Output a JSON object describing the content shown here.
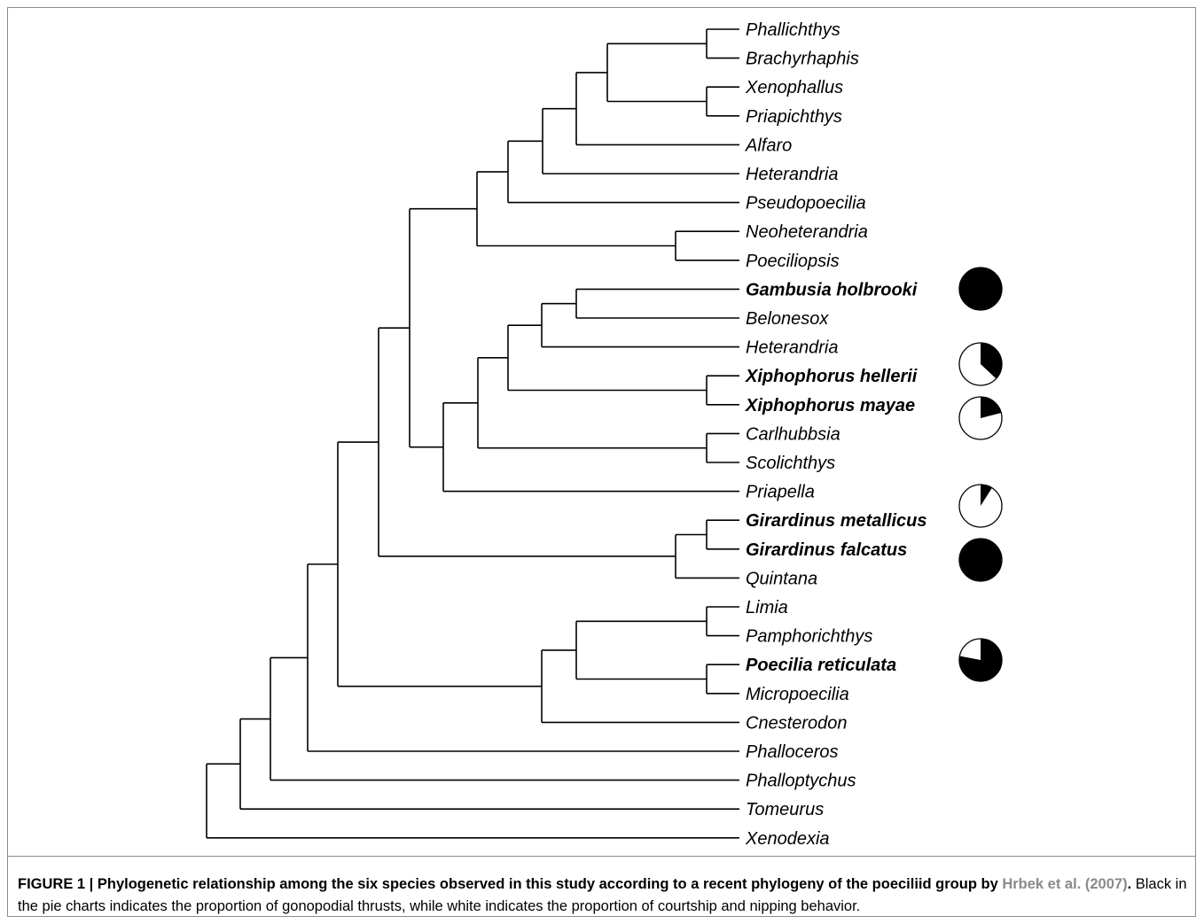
{
  "taxa": [
    {
      "label": "Phallichthys",
      "bold": false
    },
    {
      "label": "Brachyrhaphis",
      "bold": false
    },
    {
      "label": "Xenophallus",
      "bold": false
    },
    {
      "label": "Priapichthys",
      "bold": false
    },
    {
      "label": "Alfaro",
      "bold": false
    },
    {
      "label": "Heterandria",
      "bold": false
    },
    {
      "label": "Pseudopoecilia",
      "bold": false
    },
    {
      "label": "Neoheterandria",
      "bold": false
    },
    {
      "label": "Poeciliopsis",
      "bold": false
    },
    {
      "label": "Gambusia holbrooki",
      "bold": true
    },
    {
      "label": "Belonesox",
      "bold": false
    },
    {
      "label": "Heterandria",
      "bold": false
    },
    {
      "label": "Xiphophorus hellerii",
      "bold": true
    },
    {
      "label": "Xiphophorus mayae",
      "bold": true
    },
    {
      "label": "Carlhubbsia",
      "bold": false
    },
    {
      "label": "Scolichthys",
      "bold": false
    },
    {
      "label": "Priapella",
      "bold": false
    },
    {
      "label": "Girardinus metallicus",
      "bold": true
    },
    {
      "label": "Girardinus falcatus",
      "bold": true
    },
    {
      "label": "Quintana",
      "bold": false
    },
    {
      "label": "Limia",
      "bold": false
    },
    {
      "label": "Pamphorichthys",
      "bold": false
    },
    {
      "label": "Poecilia reticulata",
      "bold": true
    },
    {
      "label": "Micropoecilia",
      "bold": false
    },
    {
      "label": "Cnesterodon",
      "bold": false
    },
    {
      "label": "Phalloceros",
      "bold": false
    },
    {
      "label": "Phalloptychus",
      "bold": false
    },
    {
      "label": "Tomeurus",
      "bold": false
    },
    {
      "label": "Xenodexia",
      "bold": false
    }
  ],
  "pie_charts": [
    {
      "species": "Gambusia holbrooki",
      "gonopodial_thrust_fraction": 1.0
    },
    {
      "species": "Xiphophorus hellerii",
      "gonopodial_thrust_fraction": 0.37
    },
    {
      "species": "Xiphophorus mayae",
      "gonopodial_thrust_fraction": 0.21
    },
    {
      "species": "Girardinus metallicus",
      "gonopodial_thrust_fraction": 0.09
    },
    {
      "species": "Girardinus falcatus",
      "gonopodial_thrust_fraction": 1.0
    },
    {
      "species": "Poecilia reticulata",
      "gonopodial_thrust_fraction": 0.78
    }
  ],
  "pie_colors": {
    "thrust": "#000000",
    "courtship_nipping": "#ffffff"
  },
  "caption": {
    "label_bold": "FIGURE 1 | Phylogenetic relationship among the six species observed in this study according to a recent phylogeny of the poeciliid group by ",
    "reference": "Hrbek et al. (2007)",
    "after_reference_bold": ".",
    "body": " Black in the pie charts indicates the proportion of gonopodial thrusts, while white indicates the proportion of courtship and nipping behavior."
  }
}
